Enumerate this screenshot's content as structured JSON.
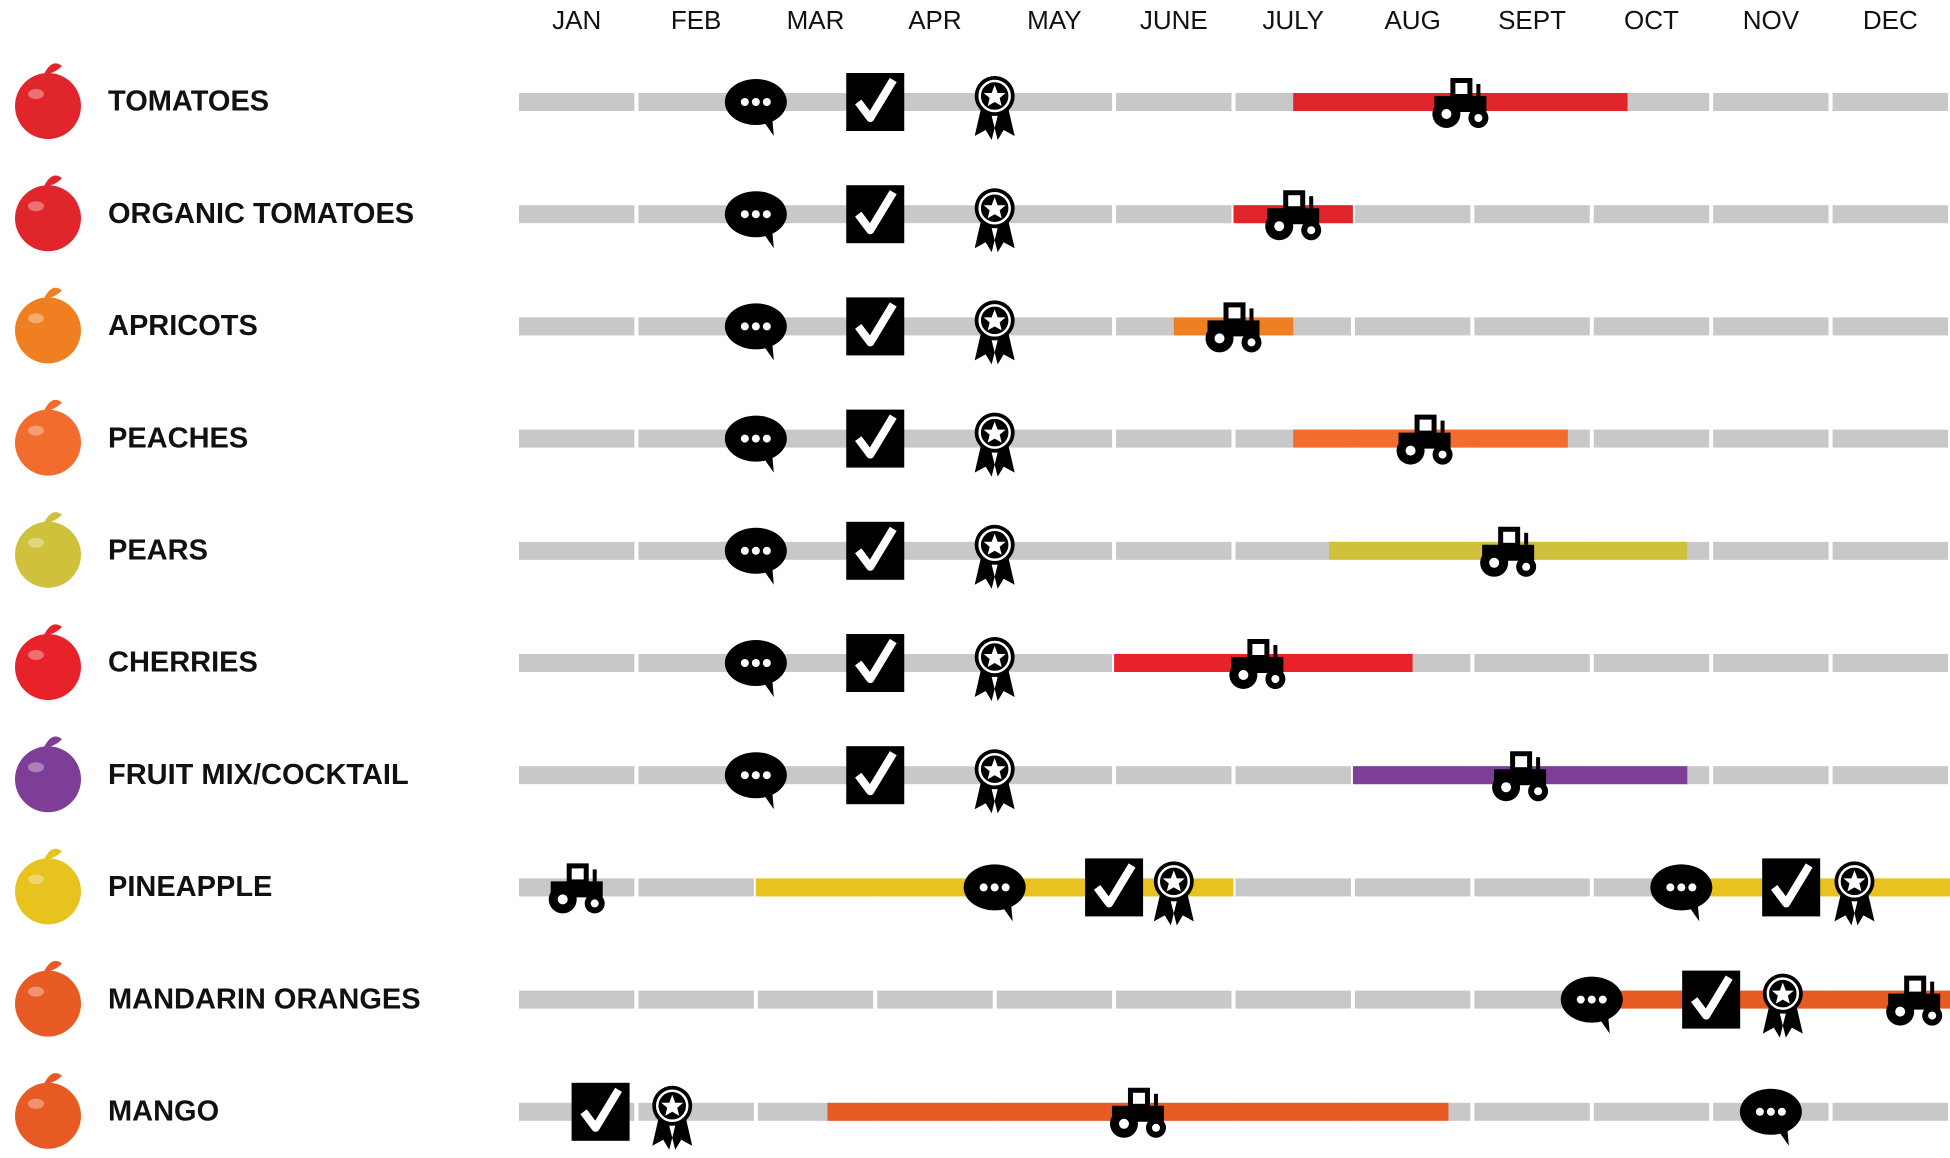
{
  "chart_data": {
    "type": "timeline",
    "categories": [
      "JAN",
      "FEB",
      "MAR",
      "APR",
      "MAY",
      "JUNE",
      "JULY",
      "AUG",
      "SEPT",
      "OCT",
      "NOV",
      "DEC"
    ],
    "xlim": [
      0,
      12
    ],
    "track_color": "#c8c8c9",
    "rows": [
      {
        "label": "TOMATOES",
        "color": "#e0262b",
        "periods": [
          [
            6.5,
            9.3
          ]
        ],
        "harvest": [
          7.9
        ],
        "discuss": [
          2.0
        ],
        "approve": [
          3.0
        ],
        "award": [
          4.0
        ]
      },
      {
        "label": "ORGANIC TOMATOES",
        "color": "#e0262b",
        "periods": [
          [
            6.0,
            7.0
          ]
        ],
        "harvest": [
          6.5
        ],
        "discuss": [
          2.0
        ],
        "approve": [
          3.0
        ],
        "award": [
          4.0
        ]
      },
      {
        "label": "APRICOTS",
        "color": "#f07f22",
        "periods": [
          [
            5.5,
            6.5
          ]
        ],
        "harvest": [
          6.0
        ],
        "discuss": [
          2.0
        ],
        "approve": [
          3.0
        ],
        "award": [
          4.0
        ]
      },
      {
        "label": "PEACHES",
        "color": "#f26c2e",
        "periods": [
          [
            6.5,
            8.8
          ]
        ],
        "harvest": [
          7.6
        ],
        "discuss": [
          2.0
        ],
        "approve": [
          3.0
        ],
        "award": [
          4.0
        ]
      },
      {
        "label": "PEARS",
        "color": "#cfc13c",
        "periods": [
          [
            6.8,
            9.8
          ]
        ],
        "harvest": [
          8.3
        ],
        "discuss": [
          2.0
        ],
        "approve": [
          3.0
        ],
        "award": [
          4.0
        ]
      },
      {
        "label": "CHERRIES",
        "color": "#e7222a",
        "periods": [
          [
            5.0,
            7.5
          ]
        ],
        "harvest": [
          6.2
        ],
        "discuss": [
          2.0
        ],
        "approve": [
          3.0
        ],
        "award": [
          4.0
        ]
      },
      {
        "label": "FRUIT MIX/COCKTAIL",
        "color": "#7e3d97",
        "periods": [
          [
            7.0,
            9.8
          ]
        ],
        "harvest": [
          8.4
        ],
        "discuss": [
          2.0
        ],
        "approve": [
          3.0
        ],
        "award": [
          4.0
        ]
      },
      {
        "label": "PINEAPPLE",
        "color": "#e8c21f",
        "periods": [
          [
            2.0,
            6.0
          ],
          [
            9.5,
            12.0
          ]
        ],
        "harvest": [
          0.5
        ],
        "discuss": [
          4.0,
          9.75
        ],
        "approve": [
          5.0,
          10.67
        ],
        "award": [
          5.5,
          11.2
        ]
      },
      {
        "label": "MANDARIN ORANGES",
        "color": "#e85a24",
        "periods": [
          [
            9.0,
            12.0
          ]
        ],
        "harvest": [
          11.7
        ],
        "discuss": [
          9.0
        ],
        "approve": [
          10.0
        ],
        "award": [
          10.6
        ]
      },
      {
        "label": "MANGO",
        "color": "#e85a24",
        "periods": [
          [
            2.6,
            7.8
          ]
        ],
        "harvest": [
          5.2
        ],
        "discuss": [
          10.5
        ],
        "approve": [
          0.7
        ],
        "award": [
          1.3
        ]
      }
    ]
  }
}
